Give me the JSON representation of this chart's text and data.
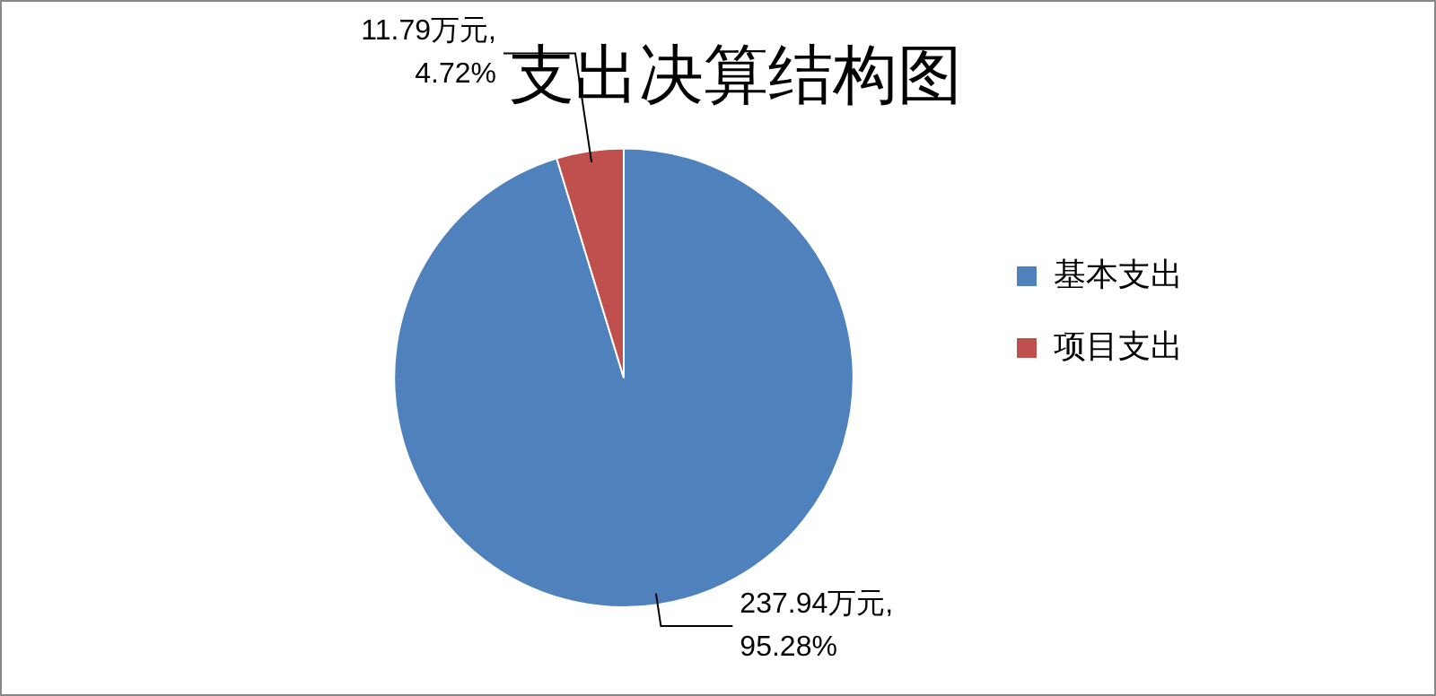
{
  "chart_data": {
    "type": "pie",
    "title": "支出决算结构图",
    "categories": [
      "基本支出",
      "项目支出"
    ],
    "values": [
      237.94,
      11.79
    ],
    "colors": [
      "#4f81bd",
      "#c0504d"
    ],
    "value_labels": [
      "237.94万元,95.28%",
      "11.79万元,4.72%"
    ],
    "legend": "right"
  }
}
